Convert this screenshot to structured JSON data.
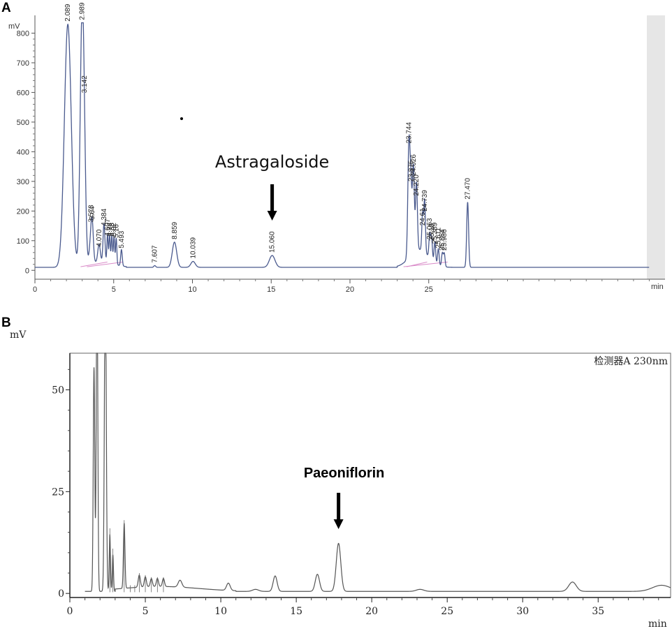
{
  "chart_data": [
    {
      "panel": "A",
      "type": "line",
      "ylabel": "mV",
      "xlabel": "min",
      "xlim": [
        0,
        40
      ],
      "ylim": [
        -30,
        860
      ],
      "xticks": [
        0,
        5,
        10,
        15,
        20,
        25
      ],
      "xticks_minor": [
        1,
        2,
        3,
        4,
        6,
        7,
        8,
        9,
        11,
        12,
        13,
        14,
        16,
        17,
        18,
        19,
        21,
        22,
        23,
        24,
        26,
        27,
        28,
        29,
        30,
        31,
        32,
        33,
        34,
        35,
        36,
        37,
        38,
        39
      ],
      "yticks": [
        0,
        100,
        200,
        300,
        400,
        500,
        600,
        700,
        800
      ],
      "annotation": {
        "text": "Astragaloside",
        "x": 15.06
      },
      "baseline": 10,
      "peaks": [
        {
          "rt": 2.089,
          "height": 820,
          "width": 0.22,
          "label": "2.089"
        },
        {
          "rt": 2.989,
          "height": 820,
          "width": 0.12,
          "label": "2.989"
        },
        {
          "rt": 3.142,
          "height": 215,
          "width": 0.1,
          "label": "3.142"
        },
        {
          "rt": 3.573,
          "height": 95,
          "width": 0.1,
          "label": "3.573"
        },
        {
          "rt": 3.64,
          "height": 75,
          "width": 0.07,
          "label": "3.64"
        },
        {
          "rt": 4.07,
          "height": 60,
          "width": 0.08,
          "label": "4.070"
        },
        {
          "rt": 4.384,
          "height": 130,
          "width": 0.06,
          "label": "4.384"
        },
        {
          "rt": 4.607,
          "height": 95,
          "width": 0.04,
          "label": "4.607"
        },
        {
          "rt": 4.74,
          "height": 95,
          "width": 0.04,
          "label": "4.74"
        },
        {
          "rt": 4.88,
          "height": 95,
          "width": 0.04,
          "label": "4.88"
        },
        {
          "rt": 5.02,
          "height": 95,
          "width": 0.04,
          "label": "5.02"
        },
        {
          "rt": 5.16,
          "height": 90,
          "width": 0.04,
          "label": "5.16"
        },
        {
          "rt": 5.493,
          "height": 55,
          "width": 0.05,
          "label": "5.493"
        },
        {
          "rt": 7.607,
          "height": 6,
          "width": 0.06,
          "label": "7.607"
        },
        {
          "rt": 8.859,
          "height": 85,
          "width": 0.14,
          "label": "8.859"
        },
        {
          "rt": 10.039,
          "height": 20,
          "width": 0.14,
          "label": "10.039"
        },
        {
          "rt": 15.06,
          "height": 40,
          "width": 0.18,
          "label": "15.060"
        },
        {
          "rt": 23.744,
          "height": 390,
          "width": 0.07,
          "label": "23.744"
        },
        {
          "rt": 23.875,
          "height": 200,
          "width": 0.06,
          "label": "23.875"
        },
        {
          "rt": 24.026,
          "height": 290,
          "width": 0.06,
          "label": "24.026"
        },
        {
          "rt": 24.22,
          "height": 230,
          "width": 0.06,
          "label": "24.220"
        },
        {
          "rt": 24.61,
          "height": 125,
          "width": 0.05,
          "label": "24.61"
        },
        {
          "rt": 24.739,
          "height": 175,
          "width": 0.05,
          "label": "24.739"
        },
        {
          "rt": 25.063,
          "height": 80,
          "width": 0.05,
          "label": "25.063"
        },
        {
          "rt": 25.18,
          "height": 75,
          "width": 0.05,
          "label": "25.18"
        },
        {
          "rt": 25.389,
          "height": 70,
          "width": 0.05,
          "label": "25.389"
        },
        {
          "rt": 25.611,
          "height": 55,
          "width": 0.05,
          "label": "25.611"
        },
        {
          "rt": 25.864,
          "height": 45,
          "width": 0.05,
          "label": "25.864"
        },
        {
          "rt": 25.986,
          "height": 45,
          "width": 0.05,
          "label": "25.986"
        },
        {
          "rt": 27.47,
          "height": 220,
          "width": 0.06,
          "label": "27.470"
        }
      ]
    },
    {
      "panel": "B",
      "type": "line",
      "ylabel": "mV",
      "xlabel": "min",
      "legend": "检测器A 230nm",
      "xlim": [
        0,
        39.8
      ],
      "ylim": [
        -1,
        59
      ],
      "xticks": [
        0,
        5,
        10,
        15,
        20,
        25,
        30,
        35
      ],
      "yticks": [
        0,
        25,
        50
      ],
      "annotation": {
        "text": "Paeoniflorin",
        "x": 17.8
      },
      "baseline": 0.5,
      "peaks": [
        {
          "rt": 1.6,
          "height": 55,
          "width": 0.05
        },
        {
          "rt": 1.8,
          "height": 80,
          "width": 0.05
        },
        {
          "rt": 2.35,
          "height": 80,
          "width": 0.06
        },
        {
          "rt": 2.65,
          "height": 14,
          "width": 0.04
        },
        {
          "rt": 2.85,
          "height": 9,
          "width": 0.04
        },
        {
          "rt": 3.6,
          "height": 16,
          "width": 0.05
        },
        {
          "rt": 4.6,
          "height": 3,
          "width": 0.07
        },
        {
          "rt": 5.0,
          "height": 2.5,
          "width": 0.07
        },
        {
          "rt": 5.4,
          "height": 2,
          "width": 0.07
        },
        {
          "rt": 5.8,
          "height": 2,
          "width": 0.07
        },
        {
          "rt": 6.2,
          "height": 2,
          "width": 0.07
        },
        {
          "rt": 7.3,
          "height": 1.7,
          "width": 0.12
        },
        {
          "rt": 10.5,
          "height": 1.8,
          "width": 0.12
        },
        {
          "rt": 12.3,
          "height": 0.5,
          "width": 0.2
        },
        {
          "rt": 13.6,
          "height": 3.8,
          "width": 0.13
        },
        {
          "rt": 16.4,
          "height": 4.2,
          "width": 0.14
        },
        {
          "rt": 17.8,
          "height": 11.8,
          "width": 0.15
        },
        {
          "rt": 23.2,
          "height": 0.5,
          "width": 0.25
        },
        {
          "rt": 33.3,
          "height": 2.3,
          "width": 0.25
        },
        {
          "rt": 39.2,
          "height": 1.5,
          "width": 0.6
        }
      ]
    }
  ]
}
